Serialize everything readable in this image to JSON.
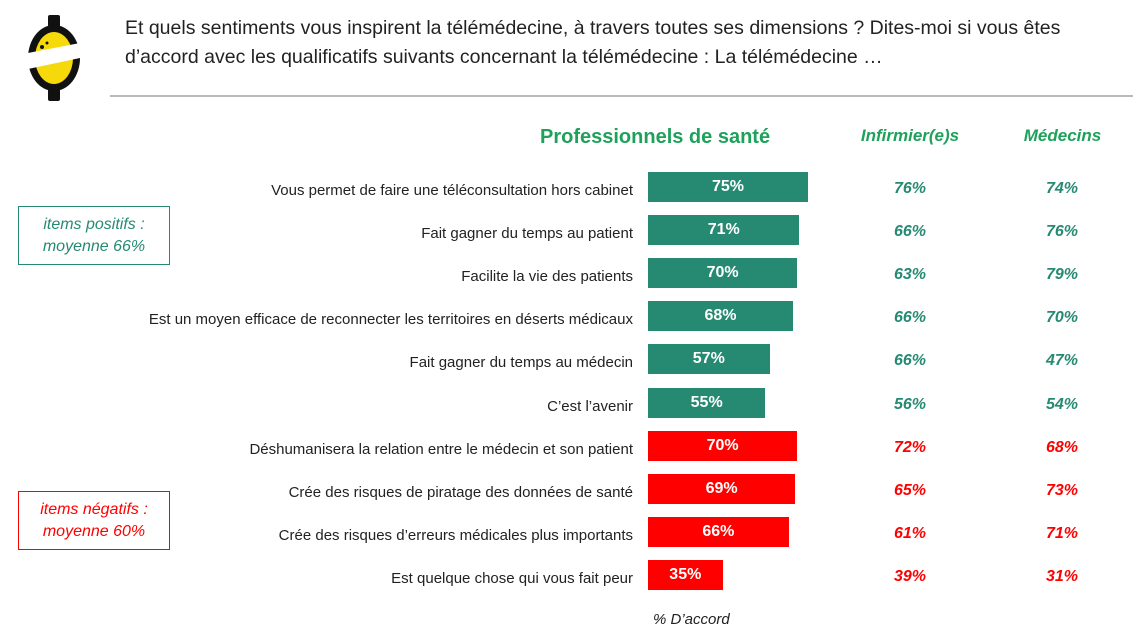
{
  "header": {
    "question": "Et quels sentiments vous inspirent la télémédecine, à travers toutes ses dimensions ? Dites-moi si vous êtes d’accord avec les qualificatifs suivants concernant la télémédecine : La télémédecine …"
  },
  "columns": {
    "professionals": "Professionnels de santé",
    "nurses": "Infirmier(e)s",
    "doctors": "Médecins"
  },
  "callouts": {
    "positive_line1": "items positifs :",
    "positive_line2": "moyenne 66%",
    "negative_line1": "items négatifs :",
    "negative_line2": "moyenne 60%"
  },
  "colors": {
    "positive": "#268a72",
    "negative": "#ff0000",
    "header_green": "#1ea15a",
    "logo_yellow": "#f5d90a"
  },
  "chart_data": {
    "type": "bar",
    "orientation": "horizontal",
    "xlabel": "% D’accord",
    "categories": [
      "Vous permet de faire une téléconsultation hors cabinet",
      "Fait gagner du temps au patient",
      "Facilite la vie des patients",
      "Est un moyen efficace de reconnecter les territoires en déserts médicaux",
      "Fait gagner du temps au médecin",
      "C’est l’avenir",
      "Déshumanisera la relation entre le médecin et son patient",
      "Crée des risques de piratage des données de santé",
      "Crée des risques d’erreurs médicales plus importants",
      "Est quelque chose qui vous fait peur"
    ],
    "sentiment": [
      "positive",
      "positive",
      "positive",
      "positive",
      "positive",
      "positive",
      "negative",
      "negative",
      "negative",
      "negative"
    ],
    "series": [
      {
        "name": "Professionnels de santé",
        "values": [
          75,
          71,
          70,
          68,
          57,
          55,
          70,
          69,
          66,
          35
        ]
      },
      {
        "name": "Infirmier(e)s",
        "values": [
          76,
          66,
          63,
          66,
          66,
          56,
          72,
          65,
          61,
          39
        ]
      },
      {
        "name": "Médecins",
        "values": [
          74,
          76,
          79,
          70,
          47,
          54,
          68,
          73,
          71,
          31
        ]
      }
    ],
    "value_labels": {
      "professionals": [
        "75%",
        "71%",
        "70%",
        "68%",
        "57%",
        "55%",
        "70%",
        "69%",
        "66%",
        "35%"
      ],
      "nurses": [
        "76%",
        "66%",
        "63%",
        "66%",
        "66%",
        "56%",
        "72%",
        "65%",
        "61%",
        "39%"
      ],
      "doctors": [
        "74%",
        "76%",
        "79%",
        "70%",
        "47%",
        "54%",
        "68%",
        "73%",
        "71%",
        "31%"
      ]
    }
  }
}
